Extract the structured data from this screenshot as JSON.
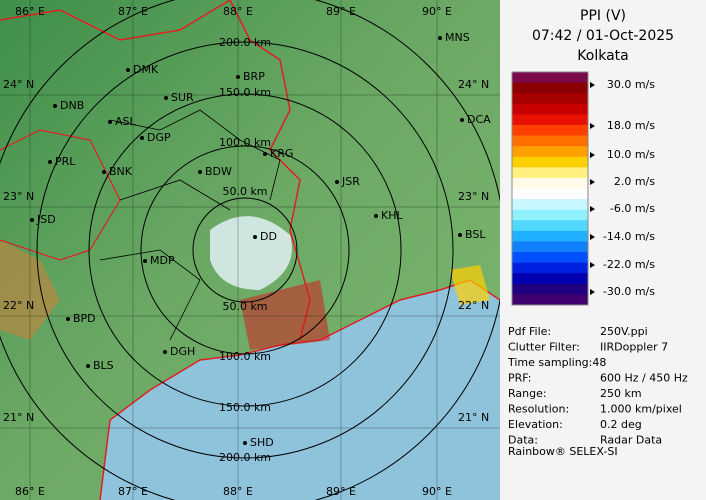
{
  "map": {
    "lon_labels": [
      "86° E",
      "87° E",
      "88° E",
      "89° E",
      "90° E"
    ],
    "lat_labels": [
      "24° N",
      "23° N",
      "22° N",
      "21° N"
    ],
    "range_labels_north": [
      "200.0 km",
      "150.0 km",
      "100.0 km",
      "50.0 km"
    ],
    "range_labels_south": [
      "50.0 km",
      "100.0 km",
      "150.0 km",
      "200.0 km"
    ],
    "cities": [
      "MNS",
      "DMK",
      "BRP",
      "SUR",
      "DNB",
      "ASL",
      "DGP",
      "DCA",
      "KRG",
      "PRL",
      "BNK",
      "BDW",
      "JSR",
      "KHL",
      "JSD",
      "DD",
      "BSL",
      "MDP",
      "BPD",
      "BLS",
      "DGH",
      "SHD"
    ]
  },
  "panel": {
    "title": "PPI (V)",
    "time": "07:42 / 01-Oct-2025",
    "site": "Kolkata",
    "scale_colors": [
      "#7a0a4a",
      "#8b0000",
      "#a80000",
      "#c80000",
      "#e81000",
      "#ff4000",
      "#ff7000",
      "#ffa000",
      "#ffd000",
      "#fff080",
      "#fffbe8",
      "#ffffff",
      "#c8f8ff",
      "#90f0ff",
      "#50d8ff",
      "#20b0ff",
      "#1080ff",
      "#0050ff",
      "#0020e0",
      "#0000b0",
      "#200080",
      "#400070"
    ],
    "scale_labels": [
      "30.0 m/s",
      "18.0 m/s",
      "10.0 m/s",
      "2.0 m/s",
      "-6.0 m/s",
      "-14.0 m/s",
      "-22.0 m/s",
      "-30.0 m/s"
    ],
    "info": [
      [
        "Pdf File:",
        "250V.ppi"
      ],
      [
        "Clutter Filter:",
        "IIRDoppler 7"
      ],
      [
        "Time sampling:48"
      ],
      [
        "PRF:",
        "600 Hz / 450 Hz"
      ],
      [
        "Range:",
        "250 km"
      ],
      [
        "Resolution:",
        "1.000 km/pixel"
      ],
      [
        "Elevation:",
        "0.2 deg"
      ],
      [
        "Data:",
        "Radar Data"
      ]
    ],
    "footer": "Rainbow® SELEX-SI"
  }
}
